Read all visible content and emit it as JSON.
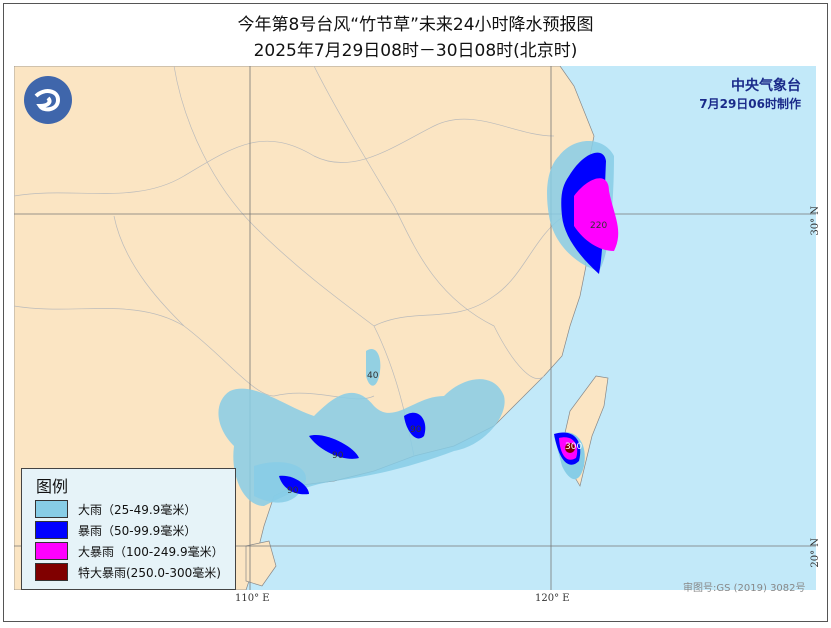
{
  "title": "今年第8号台风“竹节草”未来24小时降水预报图",
  "subtitle": "2025年7月29日08时－30日08时(北京时)",
  "agency": {
    "name": "中央气象台",
    "made": "7月29日06时制作"
  },
  "legend": {
    "heading": "图例",
    "items": [
      {
        "label": "大雨（25-49.9毫米）",
        "color": "#87cde6"
      },
      {
        "label": "暴雨（50-99.9毫米）",
        "color": "#0000ff"
      },
      {
        "label": "大暴雨（100-249.9毫米）",
        "color": "#ff00ff"
      },
      {
        "label": "特大暴雨(250.0-300毫米)",
        "color": "#800000"
      }
    ]
  },
  "axes": {
    "lon": [
      "110° E",
      "120° E"
    ],
    "lat": [
      "30° N",
      "20° N"
    ]
  },
  "labels": [
    "220",
    "40",
    "90",
    "90",
    "90",
    "300"
  ],
  "credit": "审图号:GS (2019) 3082号",
  "colors": {
    "land": "#fbe5c3",
    "sea": "#c2e9f9"
  }
}
